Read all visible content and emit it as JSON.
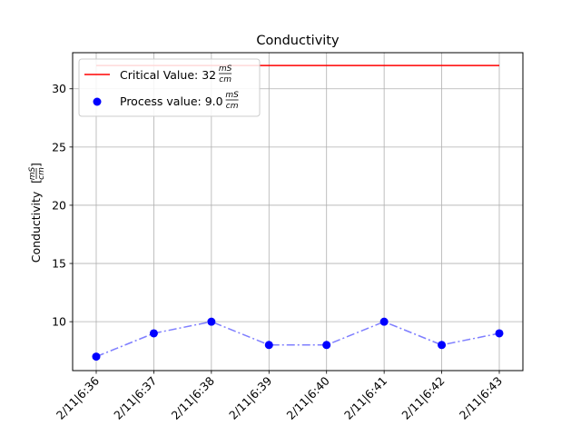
{
  "chart_data": {
    "type": "line",
    "title": "Conductivity",
    "ylabel": {
      "text": "Conductivity",
      "unit_num": "mS",
      "unit_den": "cm"
    },
    "xlabel": "",
    "categories": [
      "2/11|6:36",
      "2/11|6:37",
      "2/11|6:38",
      "2/11|6:39",
      "2/11|6:40",
      "2/11|6:41",
      "2/11|6:42",
      "2/11|6:43"
    ],
    "series": [
      {
        "name": "Process value: 9.0",
        "unit_num": "mS",
        "unit_den": "cm",
        "values": [
          7,
          9,
          10,
          8,
          8,
          10,
          8,
          9
        ],
        "marker_color": "#0000ff",
        "line_color": "#7f7fff",
        "line_style": "dash-dot"
      },
      {
        "name": "Critical Value: 32",
        "unit_num": "mS",
        "unit_den": "cm",
        "values": [
          32,
          32,
          32,
          32,
          32,
          32,
          32,
          32
        ],
        "line_color": "#ff0000",
        "line_style": "solid"
      }
    ],
    "ylim": [
      5.8,
      33.1
    ],
    "yticks": [
      10,
      15,
      20,
      25,
      30
    ],
    "grid": true,
    "legend_position": "top-left"
  }
}
